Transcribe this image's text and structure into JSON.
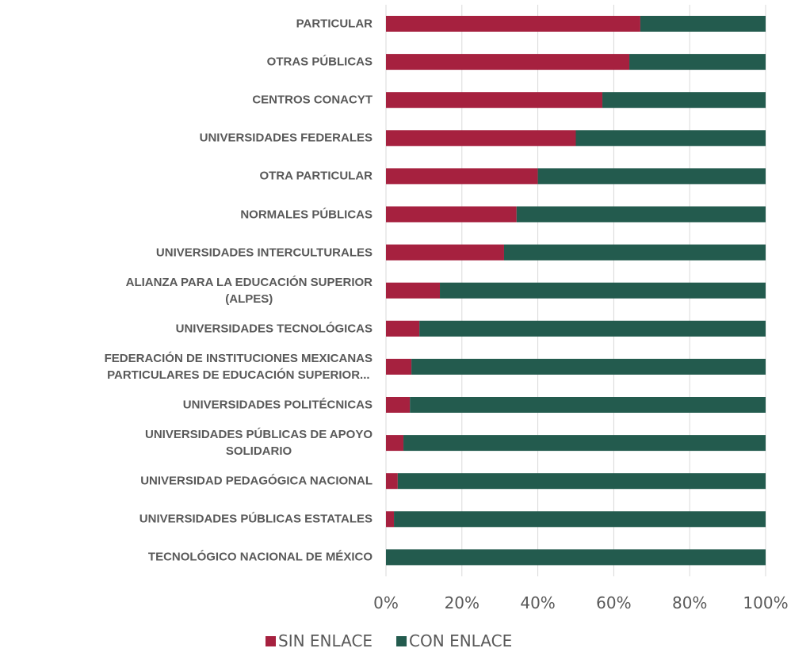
{
  "chart_data": {
    "type": "stacked_barh",
    "categories": [
      "PARTICULAR",
      "OTRAS PÚBLICAS",
      "CENTROS CONACYT",
      "UNIVERSIDADES FEDERALES",
      "OTRA PARTICULAR",
      "NORMALES PÚBLICAS",
      "UNIVERSIDADES INTERCULTURALES",
      "ALIANZA PARA LA EDUCACIÓN SUPERIOR\n(ALPES)",
      "UNIVERSIDADES TECNOLÓGICAS",
      "FEDERACIÓN DE INSTITUCIONES MEXICANAS\nPARTICULARES DE EDUCACIÓN SUPERIOR...",
      "UNIVERSIDADES POLITÉCNICAS",
      "UNIVERSIDADES PÚBLICAS DE APOYO\nSOLIDARIO",
      "UNIVERSIDAD PEDAGÓGICA NACIONAL",
      "UNIVERSIDADES PÚBLICAS ESTATALES",
      "TECNOLÓGICO NACIONAL DE MÉXICO"
    ],
    "series": [
      {
        "name": "SIN ENLACE",
        "color": "#a6213f",
        "values": [
          67.0,
          64.1,
          57.0,
          50.0,
          40.0,
          34.4,
          31.1,
          14.2,
          8.8,
          6.7,
          6.3,
          4.6,
          3.1,
          2.1,
          0
        ]
      },
      {
        "name": "CON ENLACE",
        "color": "#235b4e",
        "values": [
          33.0,
          35.9,
          43.0,
          50.0,
          60.0,
          65.6,
          68.9,
          85.8,
          91.2,
          93.3,
          93.7,
          95.4,
          96.9,
          97.9,
          100
        ]
      }
    ],
    "xlim": [
      0,
      100
    ],
    "xticks": [
      {
        "value": 0,
        "label": "0%"
      },
      {
        "value": 20,
        "label": "20%"
      },
      {
        "value": 40,
        "label": "40%"
      },
      {
        "value": 60,
        "label": "60%"
      },
      {
        "value": 80,
        "label": "80%"
      },
      {
        "value": 100,
        "label": "100%"
      }
    ],
    "grid": true,
    "legend": "bottom"
  }
}
